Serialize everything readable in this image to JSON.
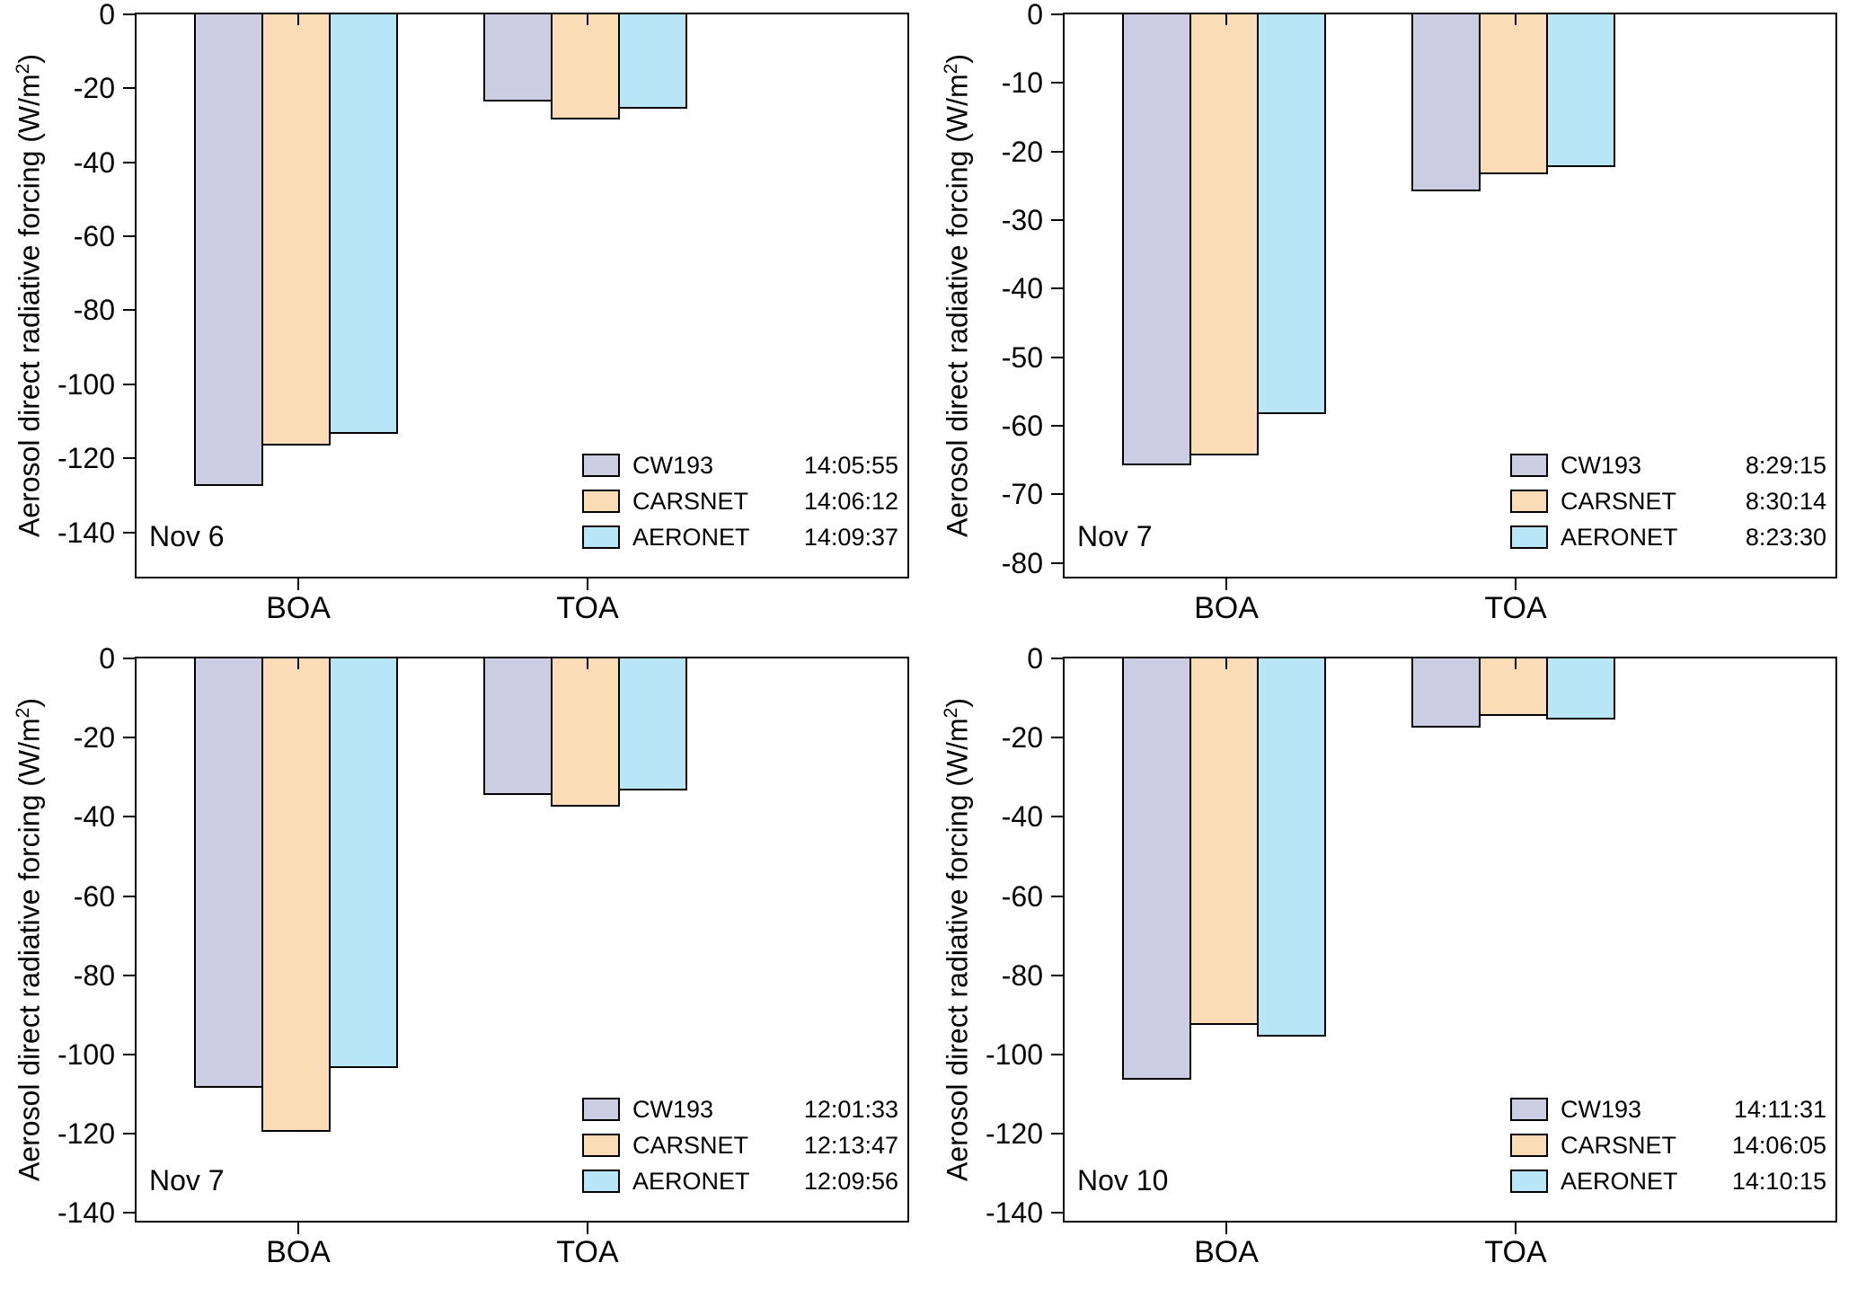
{
  "figure": {
    "background": "#ffffff"
  },
  "series_colors": {
    "CW193": "#CCCCE2",
    "CARSNET": "#FADDB6",
    "AERONET": "#B9E6F6"
  },
  "bar_border_color": "#000000",
  "chart_data": [
    {
      "type": "bar",
      "panel": "top-left",
      "date_label": "Nov 6",
      "categories": [
        "BOA",
        "TOA"
      ],
      "ylabel": {
        "text": "Aerosol direct radiative forcing (W/m",
        "sup": "2",
        "close": ")"
      },
      "ylim": [
        -152,
        0
      ],
      "yticks": [
        0,
        -20,
        -40,
        -60,
        -80,
        -100,
        -120,
        -140
      ],
      "legend_position": "bottom-right",
      "grid": false,
      "series": [
        {
          "name": "CW193",
          "time": "14:05:55",
          "values": [
            -127,
            -23
          ]
        },
        {
          "name": "CARSNET",
          "time": "14:06:12",
          "values": [
            -116,
            -28
          ]
        },
        {
          "name": "AERONET",
          "time": "14:09:37",
          "values": [
            -113,
            -25
          ]
        }
      ]
    },
    {
      "type": "bar",
      "panel": "top-right",
      "date_label": "Nov 7",
      "categories": [
        "BOA",
        "TOA"
      ],
      "ylabel": {
        "text": "Aerosol direct radiative forcing (W/m",
        "sup": "2",
        "close": ")"
      },
      "ylim": [
        -82,
        0
      ],
      "yticks": [
        0,
        -10,
        -20,
        -30,
        -40,
        -50,
        -60,
        -70,
        -80
      ],
      "legend_position": "bottom-right",
      "grid": false,
      "series": [
        {
          "name": "CW193",
          "time": "8:29:15",
          "values": [
            -65.5,
            -25.5
          ]
        },
        {
          "name": "CARSNET",
          "time": "8:30:14",
          "values": [
            -64,
            -23
          ]
        },
        {
          "name": "AERONET",
          "time": "8:23:30",
          "values": [
            -58,
            -22
          ]
        }
      ]
    },
    {
      "type": "bar",
      "panel": "bottom-left",
      "date_label": "Nov 7",
      "categories": [
        "BOA",
        "TOA"
      ],
      "ylabel": {
        "text": "Aerosol direct radiative forcing (W/m",
        "sup": "2",
        "close": ")"
      },
      "ylim": [
        -142,
        0
      ],
      "yticks": [
        0,
        -20,
        -40,
        -60,
        -80,
        -100,
        -120,
        -140
      ],
      "legend_position": "bottom-right",
      "grid": false,
      "series": [
        {
          "name": "CW193",
          "time": "12:01:33",
          "values": [
            -108,
            -34
          ]
        },
        {
          "name": "CARSNET",
          "time": "12:13:47",
          "values": [
            -119,
            -37
          ]
        },
        {
          "name": "AERONET",
          "time": "12:09:56",
          "values": [
            -103,
            -33
          ]
        }
      ]
    },
    {
      "type": "bar",
      "panel": "bottom-right",
      "date_label": "Nov 10",
      "categories": [
        "BOA",
        "TOA"
      ],
      "ylabel": {
        "text": "Aerosol direct radiative forcing (W/m",
        "sup": "2",
        "close": ")"
      },
      "ylim": [
        -142,
        0
      ],
      "yticks": [
        0,
        -20,
        -40,
        -60,
        -80,
        -100,
        -120,
        -140
      ],
      "legend_position": "bottom-right",
      "grid": false,
      "series": [
        {
          "name": "CW193",
          "time": "14:11:31",
          "values": [
            -106,
            -17
          ]
        },
        {
          "name": "CARSNET",
          "time": "14:06:05",
          "values": [
            -92,
            -14
          ]
        },
        {
          "name": "AERONET",
          "time": "14:10:15",
          "values": [
            -95,
            -15
          ]
        }
      ]
    }
  ]
}
